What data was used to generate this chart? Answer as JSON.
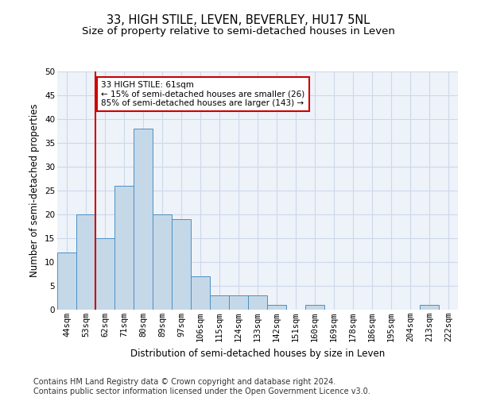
{
  "title": "33, HIGH STILE, LEVEN, BEVERLEY, HU17 5NL",
  "subtitle": "Size of property relative to semi-detached houses in Leven",
  "xlabel": "Distribution of semi-detached houses by size in Leven",
  "ylabel": "Number of semi-detached properties",
  "categories": [
    "44sqm",
    "53sqm",
    "62sqm",
    "71sqm",
    "80sqm",
    "89sqm",
    "97sqm",
    "106sqm",
    "115sqm",
    "124sqm",
    "133sqm",
    "142sqm",
    "151sqm",
    "160sqm",
    "169sqm",
    "178sqm",
    "186sqm",
    "195sqm",
    "204sqm",
    "213sqm",
    "222sqm"
  ],
  "values": [
    12,
    20,
    15,
    26,
    38,
    20,
    19,
    7,
    3,
    3,
    3,
    1,
    0,
    1,
    0,
    0,
    0,
    0,
    0,
    1,
    0
  ],
  "bar_color": "#c5d8e8",
  "bar_edge_color": "#4a90c4",
  "property_line_x": 1.5,
  "annotation_text": "33 HIGH STILE: 61sqm\n← 15% of semi-detached houses are smaller (26)\n85% of semi-detached houses are larger (143) →",
  "annotation_box_color": "#ffffff",
  "annotation_box_edge_color": "#cc0000",
  "vline_color": "#cc0000",
  "ylim": [
    0,
    50
  ],
  "yticks": [
    0,
    5,
    10,
    15,
    20,
    25,
    30,
    35,
    40,
    45,
    50
  ],
  "grid_color": "#cdd8ea",
  "footer_text": "Contains HM Land Registry data © Crown copyright and database right 2024.\nContains public sector information licensed under the Open Government Licence v3.0.",
  "background_color": "#eef2f9",
  "title_fontsize": 10.5,
  "subtitle_fontsize": 9.5,
  "axis_label_fontsize": 8.5,
  "tick_fontsize": 7.5,
  "footer_fontsize": 7.0,
  "annotation_fontsize": 7.5
}
